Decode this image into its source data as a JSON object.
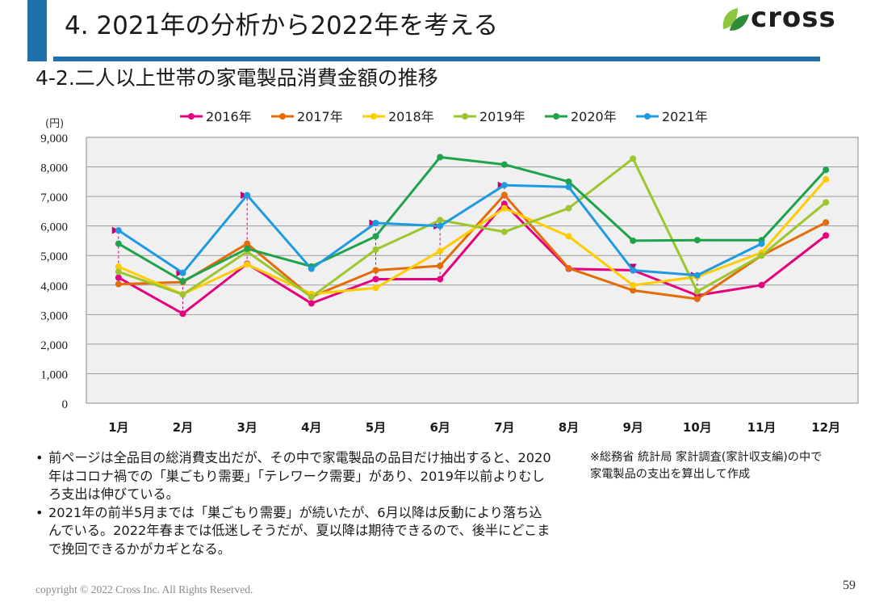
{
  "header": {
    "title": "4. 2021年の分析から2022年を考える",
    "logo_text": "cross",
    "brand_color": "#1f6fa8",
    "logo_leaf_colors": [
      "#8cc63f",
      "#2e8b3a"
    ]
  },
  "subtitle": "4-2.二人以上世帯の家電製品消費金額の推移",
  "chart_data": {
    "type": "line",
    "title": "",
    "ylabel": "(円)",
    "xlabel": "",
    "ylim": [
      0,
      9000
    ],
    "yticks": [
      0,
      1000,
      2000,
      3000,
      4000,
      5000,
      6000,
      7000,
      8000,
      9000
    ],
    "ytick_labels": [
      "0",
      "1,000",
      "2,000",
      "3,000",
      "4,000",
      "5,000",
      "6,000",
      "7,000",
      "8,000",
      "9,000"
    ],
    "grid": true,
    "legend_position": "top",
    "categories": [
      "1月",
      "2月",
      "3月",
      "4月",
      "5月",
      "6月",
      "7月",
      "8月",
      "9月",
      "10月",
      "11月",
      "12月"
    ],
    "series": [
      {
        "name": "2016年",
        "color": "#e4007f",
        "values": [
          4250,
          3030,
          4720,
          3380,
          4200,
          4200,
          6750,
          4550,
          4500,
          3650,
          4000,
          5680
        ]
      },
      {
        "name": "2017年",
        "color": "#e36c09",
        "values": [
          4030,
          4100,
          5400,
          3600,
          4500,
          4650,
          7050,
          4570,
          3820,
          3530,
          5000,
          6120
        ]
      },
      {
        "name": "2018年",
        "color": "#ffcc00",
        "values": [
          4620,
          3690,
          4700,
          3700,
          3900,
          5150,
          6600,
          5650,
          3990,
          4280,
          5100,
          7580
        ]
      },
      {
        "name": "2019年",
        "color": "#9dc62e",
        "values": [
          4450,
          3680,
          5130,
          3600,
          5200,
          6200,
          5800,
          6600,
          8280,
          3780,
          5000,
          6800
        ]
      },
      {
        "name": "2020年",
        "color": "#1ea34a",
        "values": [
          5400,
          4130,
          5230,
          4630,
          5650,
          8330,
          8080,
          7500,
          5500,
          5520,
          5520,
          7900
        ]
      },
      {
        "name": "2021年",
        "color": "#1e9be0",
        "values": [
          5850,
          4410,
          7040,
          4550,
          6100,
          6000,
          7380,
          7320,
          4500,
          4330,
          5400,
          null
        ]
      }
    ],
    "annotation_arrows": {
      "color": "#c00070",
      "months": [
        "1月",
        "2月",
        "3月",
        "5月",
        "6月",
        "7月",
        "9月",
        "10月"
      ]
    }
  },
  "notes": [
    "前ページは全品目の総消費支出だが、その中で家電製品の品目だけ抽出すると、2020年はコロナ禍での「巣ごもり需要」「テレワーク需要」があり、2019年以前よりむしろ支出は伸びている。",
    "2021年の前半5月までは「巣ごもり需要」が続いたが、6月以降は反動により落ち込んでいる。2022年春までは低迷しそうだが、夏以降は期待できるので、後半にどこまで挽回できるかがカギとなる。"
  ],
  "source_lines": [
    "※総務省 統計局 家計調査(家計収支編)の中で",
    "家電製品の支出を算出して作成"
  ],
  "footer": {
    "copyright": "copyright © 2022 Cross Inc. All Rights Reserved.",
    "page_number": "59"
  }
}
